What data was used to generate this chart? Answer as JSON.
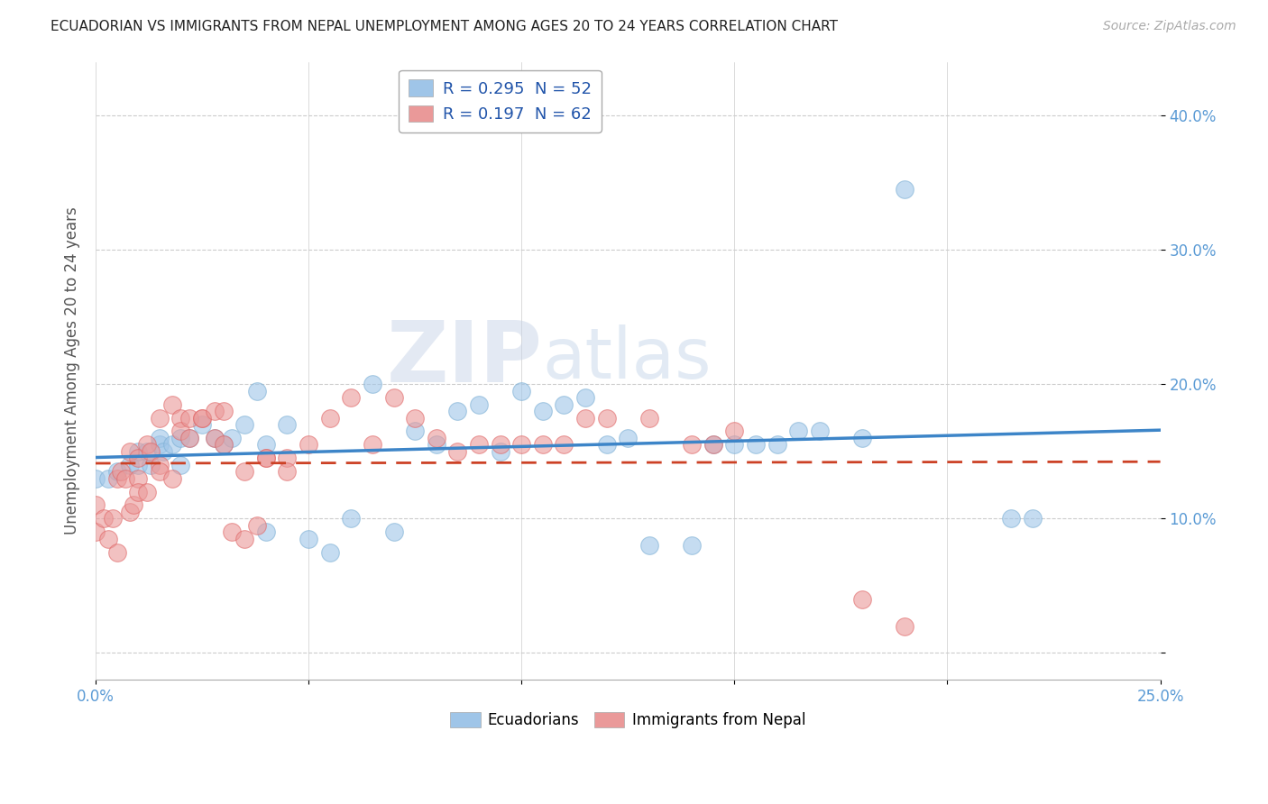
{
  "title": "ECUADORIAN VS IMMIGRANTS FROM NEPAL UNEMPLOYMENT AMONG AGES 20 TO 24 YEARS CORRELATION CHART",
  "source": "Source: ZipAtlas.com",
  "ylabel_label": "Unemployment Among Ages 20 to 24 years",
  "xlim": [
    0.0,
    0.25
  ],
  "ylim": [
    -0.02,
    0.44
  ],
  "yticks": [
    0.0,
    0.1,
    0.2,
    0.3,
    0.4
  ],
  "ytick_labels": [
    "",
    "10.0%",
    "20.0%",
    "30.0%",
    "40.0%"
  ],
  "r_blue": 0.295,
  "n_blue": 52,
  "r_pink": 0.197,
  "n_pink": 62,
  "blue_color": "#9fc5e8",
  "pink_color": "#ea9999",
  "blue_line_color": "#3d85c8",
  "pink_line_color": "#cc4125",
  "legend_blue_label": "Ecuadorians",
  "legend_pink_label": "Immigrants from Nepal",
  "watermark_zip": "ZIP",
  "watermark_atlas": "atlas",
  "blue_scatter_x": [
    0.0,
    0.003,
    0.005,
    0.008,
    0.01,
    0.01,
    0.012,
    0.013,
    0.015,
    0.015,
    0.016,
    0.018,
    0.02,
    0.02,
    0.022,
    0.025,
    0.028,
    0.03,
    0.032,
    0.035,
    0.038,
    0.04,
    0.04,
    0.045,
    0.05,
    0.055,
    0.06,
    0.065,
    0.07,
    0.075,
    0.08,
    0.085,
    0.09,
    0.095,
    0.1,
    0.105,
    0.11,
    0.115,
    0.12,
    0.125,
    0.13,
    0.14,
    0.145,
    0.15,
    0.155,
    0.16,
    0.165,
    0.17,
    0.18,
    0.19,
    0.215,
    0.22
  ],
  "blue_scatter_y": [
    0.13,
    0.13,
    0.135,
    0.14,
    0.14,
    0.15,
    0.15,
    0.14,
    0.155,
    0.16,
    0.15,
    0.155,
    0.14,
    0.16,
    0.16,
    0.17,
    0.16,
    0.155,
    0.16,
    0.17,
    0.195,
    0.09,
    0.155,
    0.17,
    0.085,
    0.075,
    0.1,
    0.2,
    0.09,
    0.165,
    0.155,
    0.18,
    0.185,
    0.15,
    0.195,
    0.18,
    0.185,
    0.19,
    0.155,
    0.16,
    0.08,
    0.08,
    0.155,
    0.155,
    0.155,
    0.155,
    0.165,
    0.165,
    0.16,
    0.345,
    0.1,
    0.1
  ],
  "pink_scatter_x": [
    0.0,
    0.0,
    0.002,
    0.003,
    0.004,
    0.005,
    0.005,
    0.006,
    0.007,
    0.008,
    0.008,
    0.009,
    0.01,
    0.01,
    0.01,
    0.012,
    0.012,
    0.013,
    0.015,
    0.015,
    0.015,
    0.018,
    0.018,
    0.02,
    0.02,
    0.022,
    0.022,
    0.025,
    0.025,
    0.028,
    0.028,
    0.03,
    0.03,
    0.032,
    0.035,
    0.035,
    0.038,
    0.04,
    0.04,
    0.045,
    0.045,
    0.05,
    0.055,
    0.06,
    0.065,
    0.07,
    0.075,
    0.08,
    0.085,
    0.09,
    0.095,
    0.1,
    0.105,
    0.11,
    0.115,
    0.12,
    0.13,
    0.14,
    0.145,
    0.15,
    0.18,
    0.19
  ],
  "pink_scatter_y": [
    0.09,
    0.11,
    0.1,
    0.085,
    0.1,
    0.075,
    0.13,
    0.135,
    0.13,
    0.105,
    0.15,
    0.11,
    0.13,
    0.145,
    0.12,
    0.12,
    0.155,
    0.15,
    0.14,
    0.175,
    0.135,
    0.185,
    0.13,
    0.175,
    0.165,
    0.16,
    0.175,
    0.175,
    0.175,
    0.16,
    0.18,
    0.18,
    0.155,
    0.09,
    0.085,
    0.135,
    0.095,
    0.145,
    0.145,
    0.145,
    0.135,
    0.155,
    0.175,
    0.19,
    0.155,
    0.19,
    0.175,
    0.16,
    0.15,
    0.155,
    0.155,
    0.155,
    0.155,
    0.155,
    0.175,
    0.175,
    0.175,
    0.155,
    0.155,
    0.165,
    0.04,
    0.02
  ]
}
